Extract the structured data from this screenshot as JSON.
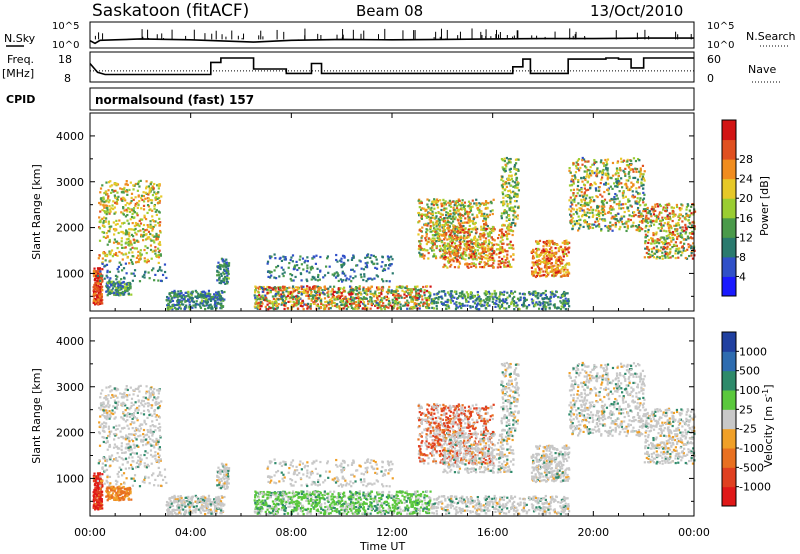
{
  "header": {
    "title": "Saskatoon (fitACF)",
    "beam": "Beam 08",
    "date": "13/Oct/2010"
  },
  "noise_panel": {
    "left_label": "N.Sky",
    "left_ticks": [
      "10^5",
      "10^0"
    ],
    "right_label": "N.Search",
    "right_ticks": [
      "10^5",
      "10^0"
    ]
  },
  "freq_panel": {
    "left_label": "Freq.",
    "left_unit": "[MHz]",
    "left_ticks": [
      "18",
      "8"
    ],
    "right_label": "Nave",
    "right_ticks": [
      "60",
      "0"
    ]
  },
  "cpid": {
    "label": "CPID",
    "text": "normalsound (fast) 157"
  },
  "power_panel": {
    "ylabel": "Slant Range [km]",
    "cbar_label": "Power [dB]"
  },
  "velocity_panel": {
    "ylabel": "Slant Range [km]",
    "cbar_label_main": "Velocity [m s",
    "cbar_label_sup": "-1",
    "cbar_label_end": "]"
  },
  "time_axis": {
    "label": "Time UT"
  },
  "chart_data": {
    "type": "heatmap",
    "title": "Saskatoon (fitACF) Beam 08 13/Oct/2010",
    "xlabel": "Time UT",
    "x_ticks": [
      "00:00",
      "04:00",
      "08:00",
      "12:00",
      "16:00",
      "20:00",
      "00:00"
    ],
    "xlim_hours": [
      0,
      24
    ],
    "ylabel": "Slant Range [km]",
    "ylim": [
      180,
      4500
    ],
    "y_ticks": [
      1000,
      2000,
      3000,
      4000
    ],
    "noise": {
      "sky_log10": [
        [
          0,
          1.2
        ],
        [
          0.2,
          0.6
        ],
        [
          0.4,
          1.3
        ],
        [
          1,
          1.4
        ],
        [
          2,
          1.6
        ],
        [
          4,
          1.4
        ],
        [
          6.5,
          0.9
        ],
        [
          8,
          1.3
        ],
        [
          10,
          1.5
        ],
        [
          12,
          1.4
        ],
        [
          14,
          1.5
        ],
        [
          16,
          1.6
        ],
        [
          18,
          1.7
        ],
        [
          20,
          1.7
        ],
        [
          22,
          1.8
        ],
        [
          24,
          1.8
        ]
      ]
    },
    "freq_mhz": [
      [
        0,
        15.5
      ],
      [
        0.3,
        11.5
      ],
      [
        0.6,
        10.5
      ],
      [
        1,
        10.5
      ],
      [
        4.8,
        10.5
      ],
      [
        4.8,
        16
      ],
      [
        5.2,
        16
      ],
      [
        5.2,
        18
      ],
      [
        6.5,
        18
      ],
      [
        6.5,
        13
      ],
      [
        7.8,
        13
      ],
      [
        7.8,
        11
      ],
      [
        8.8,
        11
      ],
      [
        8.8,
        15.5
      ],
      [
        9.2,
        15.5
      ],
      [
        9.2,
        11
      ],
      [
        16.8,
        11
      ],
      [
        16.8,
        14
      ],
      [
        17.2,
        14
      ],
      [
        17.2,
        17.5
      ],
      [
        17.5,
        17.5
      ],
      [
        17.5,
        11
      ],
      [
        19.0,
        11
      ],
      [
        19.0,
        17.5
      ],
      [
        20.5,
        17.5
      ],
      [
        20.5,
        18
      ],
      [
        21,
        18
      ],
      [
        21,
        17.5
      ],
      [
        21.5,
        17.5
      ],
      [
        21.5,
        13.5
      ],
      [
        22,
        13.5
      ],
      [
        22,
        18
      ],
      [
        24,
        18
      ]
    ],
    "nave": [
      [
        0,
        25
      ],
      [
        24,
        25
      ]
    ],
    "power": {
      "cbar_ticks": [
        4,
        8,
        12,
        16,
        20,
        24,
        28
      ],
      "range": [
        0,
        30
      ],
      "colors": [
        "#1a1aff",
        "#3050c8",
        "#2a7a6e",
        "#4a9a4a",
        "#9acd32",
        "#e6c828",
        "#f08c1e",
        "#e05020",
        "#d21414"
      ]
    },
    "velocity": {
      "cbar_ticks": [
        1000,
        500,
        100,
        25,
        -25,
        -100,
        -500,
        -1000
      ],
      "colors": [
        "#2040a0",
        "#2e6cb0",
        "#2e8a6a",
        "#5ac83c",
        "#c8c8c8",
        "#f0a028",
        "#e87020",
        "#e04020",
        "#e01818"
      ]
    }
  }
}
